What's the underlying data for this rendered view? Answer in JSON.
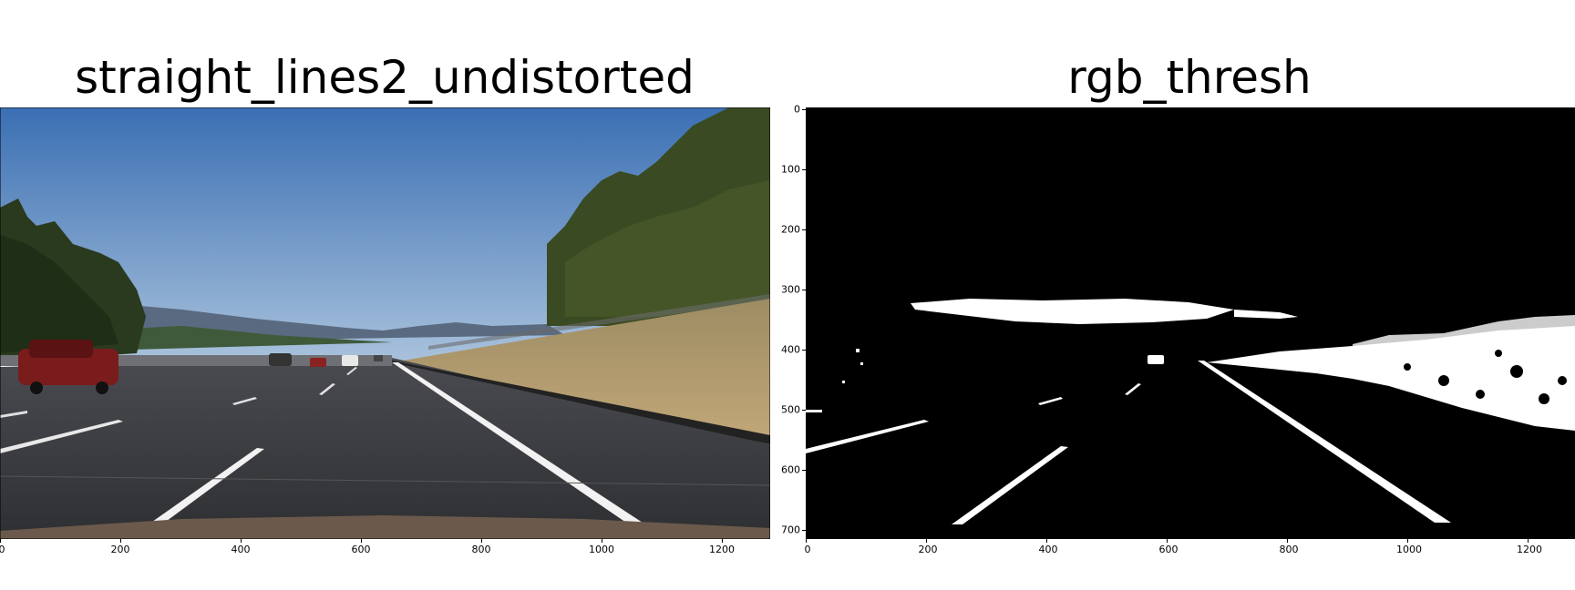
{
  "left_panel": {
    "title": "straight_lines2_undistorted",
    "x_ticks": [
      "0",
      "200",
      "400",
      "600",
      "800",
      "1000",
      "1200"
    ]
  },
  "right_panel": {
    "title": "rgb_thresh",
    "x_ticks": [
      "0",
      "200",
      "400",
      "600",
      "800",
      "1000",
      "1200"
    ],
    "y_ticks": [
      "0",
      "100",
      "200",
      "300",
      "400",
      "500",
      "600",
      "700"
    ]
  },
  "colors": {
    "sky_top": "#3e72b4",
    "sky_bottom": "#a8c0da",
    "road": "#35363b",
    "grass": "#b09a6c",
    "trees": "#2f3e1f",
    "hills": "#4a5a6e",
    "lane_white": "#f2f2f2",
    "car_red": "#7a1c1c",
    "mask_bg": "#000000",
    "mask_fg": "#ffffff"
  },
  "icons": [
    "road-photo-image",
    "binary-threshold-mask-image"
  ]
}
